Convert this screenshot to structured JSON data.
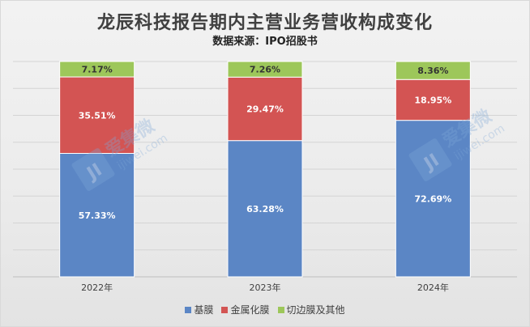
{
  "chart_data": {
    "type": "bar",
    "stacked": true,
    "percent_stacked": true,
    "title": "龙辰科技报告期内主营业务营收构成变化",
    "subtitle": "数据来源：IPO招股书",
    "categories": [
      "2022年",
      "2023年",
      "2024年"
    ],
    "series": [
      {
        "name": "基膜",
        "color": "#5b86c5",
        "values": [
          57.33,
          63.28,
          72.69
        ],
        "labels": [
          "57.33%",
          "63.28%",
          "72.69%"
        ]
      },
      {
        "name": "金属化膜",
        "color": "#d35453",
        "values": [
          35.51,
          29.47,
          18.95
        ],
        "labels": [
          "35.51%",
          "29.47%",
          "18.95%"
        ]
      },
      {
        "name": "切边膜及其他",
        "color": "#9dc75a",
        "values": [
          7.17,
          7.26,
          8.36
        ],
        "labels": [
          "7.17%",
          "7.26%",
          "8.36%"
        ]
      }
    ],
    "ylim": [
      0,
      100
    ],
    "grid": true,
    "legend_position": "bottom"
  },
  "watermark": {
    "text": "爱集微",
    "url": "ijiwei.com"
  }
}
